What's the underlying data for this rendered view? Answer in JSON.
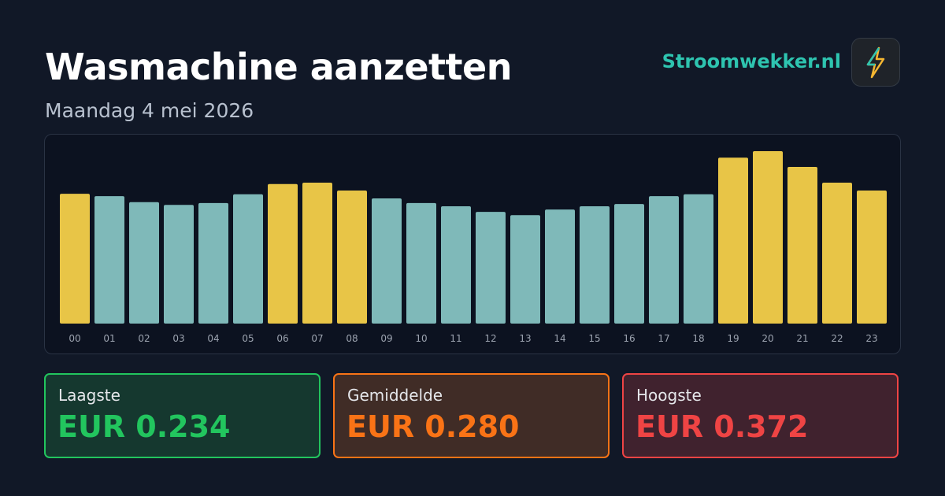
{
  "chart_data": {
    "type": "bar",
    "title": "Wasmachine aanzetten",
    "subtitle": "Maandag 4 mei 2026",
    "brand": "Stroomwekker.nl",
    "categories": [
      "00",
      "01",
      "02",
      "03",
      "04",
      "05",
      "06",
      "07",
      "08",
      "09",
      "10",
      "11",
      "12",
      "13",
      "14",
      "15",
      "16",
      "17",
      "18",
      "19",
      "20",
      "21",
      "22",
      "23"
    ],
    "values": [
      0.28,
      0.275,
      0.262,
      0.256,
      0.26,
      0.279,
      0.301,
      0.304,
      0.287,
      0.27,
      0.26,
      0.253,
      0.241,
      0.234,
      0.246,
      0.253,
      0.258,
      0.275,
      0.279,
      0.358,
      0.372,
      0.338,
      0.304,
      0.287
    ],
    "colors": [
      "#e8c547",
      "#7fb9b9",
      "#7fb9b9",
      "#7fb9b9",
      "#7fb9b9",
      "#7fb9b9",
      "#e8c547",
      "#e8c547",
      "#e8c547",
      "#7fb9b9",
      "#7fb9b9",
      "#7fb9b9",
      "#7fb9b9",
      "#7fb9b9",
      "#7fb9b9",
      "#7fb9b9",
      "#7fb9b9",
      "#7fb9b9",
      "#7fb9b9",
      "#e8c547",
      "#e8c547",
      "#e8c547",
      "#e8c547",
      "#e8c547"
    ],
    "stats": [
      {
        "label": "Laagste",
        "value": "EUR 0.234"
      },
      {
        "label": "Gemiddelde",
        "value": "EUR 0.280"
      },
      {
        "label": "Hoogste",
        "value": "EUR 0.372"
      }
    ]
  }
}
